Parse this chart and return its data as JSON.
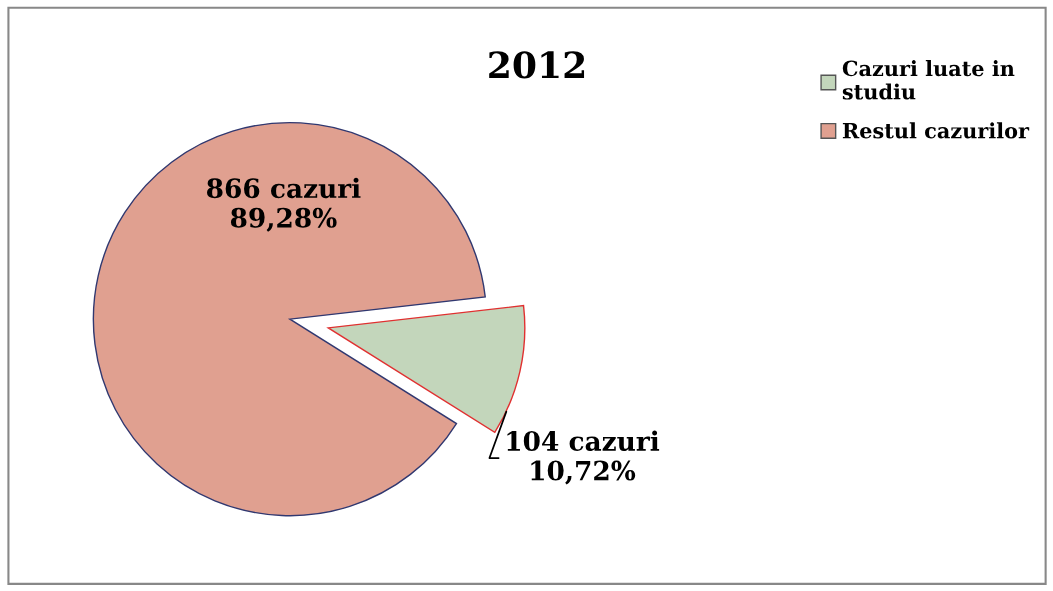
{
  "chart_data": {
    "type": "pie",
    "title": "2012",
    "categories": [
      "Cazuri luate in studiu",
      "Restul cazurilor"
    ],
    "values": [
      104,
      866
    ],
    "colors": [
      "#c3d6bb",
      "#e0a090"
    ],
    "value_labels": [
      "104 cazuri\n10,72%",
      "866 cazuri\n89,28%"
    ],
    "legend": "top right"
  }
}
